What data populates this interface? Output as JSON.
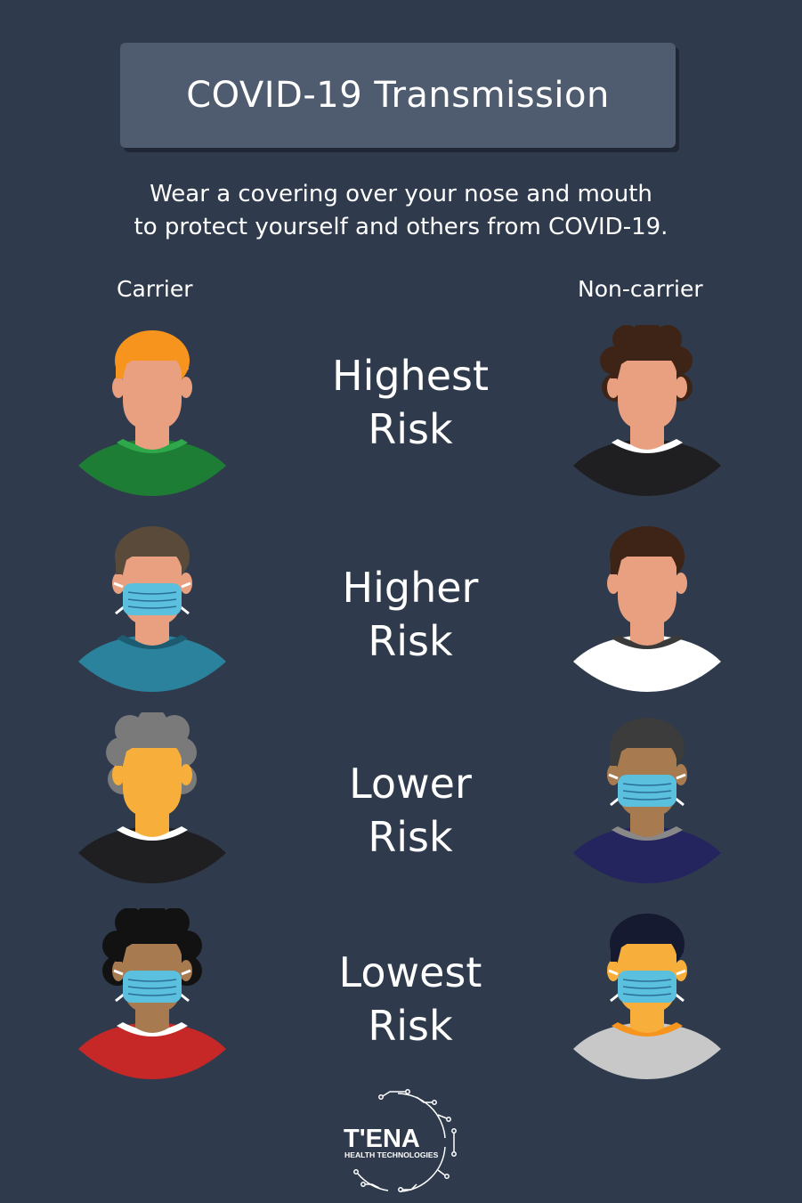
{
  "title": "COVID-19 Transmission",
  "subtitle": [
    "Wear a covering over your nose and mouth",
    "to protect yourself and others from COVID-19."
  ],
  "columns": {
    "left": "Carrier",
    "right": "Non-carrier"
  },
  "risks": [
    {
      "line1": "Highest",
      "line2": "Risk"
    },
    {
      "line1": "Higher",
      "line2": "Risk"
    },
    {
      "line1": "Lower",
      "line2": "Risk"
    },
    {
      "line1": "Lowest",
      "line2": "Risk"
    }
  ],
  "logo": {
    "name": "T'ENA",
    "tagline": "HEALTH TECHNOLOGIES"
  },
  "colors": {
    "background": "#2f3a4c",
    "title_box": "#4f5b6e",
    "mask": "#5bc0de"
  },
  "people": [
    {
      "role": "carrier",
      "row": 1,
      "masked": false,
      "hair": "#f7941d",
      "skin": "#e8a080",
      "shirt": "#1e7d35",
      "collar": "#2ea84a"
    },
    {
      "role": "non-carrier",
      "row": 1,
      "masked": false,
      "hair": "#3d2416",
      "skin": "#e8a080",
      "shirt": "#1f1f22",
      "collar": "#ffffff"
    },
    {
      "role": "carrier",
      "row": 2,
      "masked": true,
      "hair": "#5a4a3a",
      "skin": "#e8a080",
      "shirt": "#2a829c",
      "collar": "#1d5c70"
    },
    {
      "role": "non-carrier",
      "row": 2,
      "masked": false,
      "hair": "#3d2416",
      "skin": "#e8a080",
      "shirt": "#ffffff",
      "collar": "#3a3a3a"
    },
    {
      "role": "carrier",
      "row": 3,
      "masked": false,
      "hair": "#7a7a7a",
      "skin": "#f7ae3b",
      "shirt": "#1f1f22",
      "collar": "#ffffff"
    },
    {
      "role": "non-carrier",
      "row": 3,
      "masked": true,
      "hair": "#3c3c3c",
      "skin": "#a87a50",
      "shirt": "#24245e",
      "collar": "#888888"
    },
    {
      "role": "carrier",
      "row": 4,
      "masked": true,
      "hair": "#121212",
      "skin": "#a87a50",
      "shirt": "#c62828",
      "collar": "#ffffff"
    },
    {
      "role": "non-carrier",
      "row": 4,
      "masked": true,
      "hair": "#161a30",
      "skin": "#f7ae3b",
      "shirt": "#c8c8c8",
      "collar": "#f7941d"
    }
  ]
}
